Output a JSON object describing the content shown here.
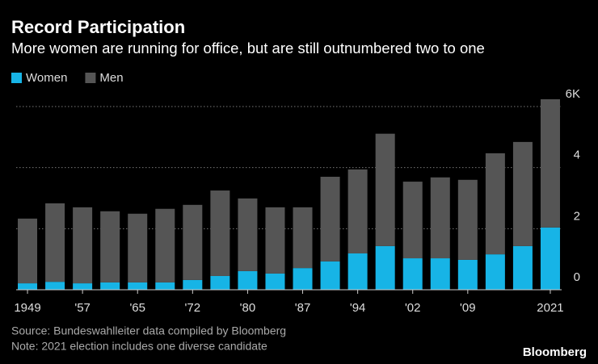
{
  "chart_data": {
    "type": "stacked-bar",
    "title": "Record Participation",
    "subtitle": "More women are running for office, but are still outnumbered two to one",
    "categories": [
      "1949",
      null,
      "'57",
      null,
      "'65",
      null,
      "'72",
      null,
      "'80",
      null,
      "'87",
      null,
      "'94",
      null,
      "'02",
      null,
      "'09",
      null,
      null,
      "2021"
    ],
    "series": [
      {
        "name": "Women",
        "color": "#17b4e6",
        "values": [
          0.21,
          0.26,
          0.21,
          0.24,
          0.24,
          0.24,
          0.32,
          0.45,
          0.61,
          0.53,
          0.71,
          0.93,
          1.19,
          1.43,
          1.03,
          1.03,
          0.98,
          1.16,
          1.43,
          2.04
        ]
      },
      {
        "name": "Men",
        "color": "#555555",
        "values": [
          2.12,
          2.57,
          2.49,
          2.33,
          2.25,
          2.41,
          2.46,
          2.8,
          2.38,
          2.17,
          1.99,
          2.77,
          2.75,
          3.68,
          2.51,
          2.65,
          2.62,
          3.31,
          3.41,
          4.2
        ]
      }
    ],
    "ylim": [
      0,
      6.5
    ],
    "yticks": [
      0,
      2,
      4,
      {
        "value": 6,
        "label": "6K"
      }
    ],
    "grid": true,
    "source": "Source: Bundeswahlleiter data compiled by Bloomberg",
    "note": "Note: 2021 election includes one diverse candidate",
    "brand": "Bloomberg"
  }
}
